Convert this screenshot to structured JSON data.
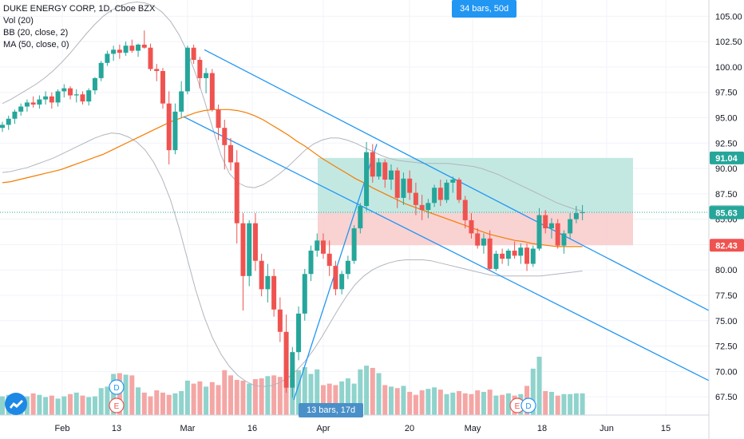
{
  "legend": {
    "title": "DUKE ENERGY CORP, 1D, Cboe BZX",
    "vol": "Vol (20)",
    "bb": "BB (20, close, 2)",
    "ma": "MA (50, close, 0)"
  },
  "colors": {
    "up": "#26a69a",
    "down": "#ef5350",
    "up_vol": "#8fd3cc",
    "down_vol": "#f4a6a5",
    "bb": "#b2b5be",
    "ma": "#f57c00",
    "channel": "#2196f3",
    "target_zone": "#b9e4dd",
    "stop_zone": "#f8caca",
    "price_line": "#26a69a",
    "label_green": "#26a69a",
    "label_red": "#ef5350",
    "label_blue": "#2196f3"
  },
  "measure_top": "34 bars, 50d",
  "measure_bottom": "13 bars, 17d",
  "logo_icon": "tradingview-logo-icon",
  "event_markers": [
    {
      "label": "D",
      "kind": "dividend",
      "x": "Feb 13"
    },
    {
      "label": "E",
      "kind": "earnings",
      "x": "Feb 13"
    },
    {
      "label": "E",
      "kind": "earnings",
      "x": "May 15"
    },
    {
      "label": "D",
      "kind": "dividend",
      "x": "May 18"
    }
  ],
  "chart_data": {
    "type": "candlestick",
    "title": "DUKE ENERGY CORP, 1D, Cboe BZX",
    "y_ticks": [
      "105.00",
      "102.50",
      "100.00",
      "97.50",
      "95.00",
      "92.50",
      "90.00",
      "87.50",
      "85.00",
      "82.50",
      "80.00",
      "77.50",
      "75.00",
      "72.50",
      "70.00",
      "67.50"
    ],
    "ylim": [
      65.7,
      106.6
    ],
    "x_ticks": [
      "Feb",
      "13",
      "Mar",
      "16",
      "Apr",
      "20",
      "May",
      "18",
      "Jun",
      "15"
    ],
    "price_labels": [
      {
        "value": "91.04",
        "color": "green",
        "meaning": "target"
      },
      {
        "value": "85.68",
        "color": "green_outline",
        "meaning": "last close"
      },
      {
        "value": "85.63",
        "color": "green",
        "meaning": "entry"
      },
      {
        "value": "82.43",
        "color": "red",
        "meaning": "stop"
      }
    ],
    "candles": [
      [
        94.0,
        94.6,
        93.6,
        94.3
      ],
      [
        94.3,
        95.2,
        93.8,
        94.9
      ],
      [
        94.9,
        95.8,
        94.4,
        95.6
      ],
      [
        95.6,
        96.4,
        95.2,
        96.1
      ],
      [
        96.1,
        96.8,
        95.6,
        96.5
      ],
      [
        96.5,
        97.1,
        96.0,
        96.3
      ],
      [
        96.3,
        97.2,
        95.9,
        96.8
      ],
      [
        96.8,
        97.6,
        96.3,
        97.1
      ],
      [
        97.1,
        97.5,
        95.9,
        96.5
      ],
      [
        96.5,
        97.8,
        96.1,
        97.6
      ],
      [
        97.6,
        98.3,
        97.0,
        97.9
      ],
      [
        97.9,
        98.1,
        96.8,
        97.2
      ],
      [
        97.2,
        97.8,
        96.5,
        97.3
      ],
      [
        97.3,
        97.6,
        96.3,
        96.6
      ],
      [
        96.6,
        97.9,
        96.2,
        97.7
      ],
      [
        97.7,
        99.0,
        97.3,
        98.9
      ],
      [
        98.9,
        100.6,
        98.6,
        100.4
      ],
      [
        100.4,
        101.6,
        100.1,
        101.3
      ],
      [
        101.3,
        102.1,
        100.6,
        101.7
      ],
      [
        101.7,
        102.2,
        100.8,
        101.4
      ],
      [
        101.4,
        102.5,
        101.1,
        102.1
      ],
      [
        102.1,
        102.7,
        101.4,
        101.6
      ],
      [
        101.6,
        102.3,
        101.0,
        102.2
      ],
      [
        102.2,
        103.6,
        101.8,
        101.9
      ],
      [
        101.9,
        102.3,
        99.6,
        99.8
      ],
      [
        99.8,
        100.3,
        98.6,
        99.6
      ],
      [
        99.6,
        99.9,
        95.9,
        96.4
      ],
      [
        96.4,
        97.6,
        90.4,
        91.8
      ],
      [
        91.8,
        96.4,
        91.4,
        95.6
      ],
      [
        95.6,
        98.6,
        95.0,
        97.6
      ],
      [
        97.6,
        102.1,
        97.3,
        101.9
      ],
      [
        101.9,
        102.2,
        100.3,
        100.7
      ],
      [
        100.7,
        101.0,
        97.9,
        98.9
      ],
      [
        98.9,
        99.9,
        97.4,
        99.4
      ],
      [
        99.4,
        99.8,
        95.6,
        95.8
      ],
      [
        95.8,
        96.3,
        92.8,
        94.0
      ],
      [
        94.0,
        94.8,
        89.9,
        92.3
      ],
      [
        92.3,
        93.0,
        89.8,
        90.6
      ],
      [
        90.6,
        91.8,
        82.6,
        84.6
      ],
      [
        84.6,
        85.6,
        76.0,
        79.4
      ],
      [
        79.4,
        84.9,
        78.4,
        84.6
      ],
      [
        84.6,
        85.6,
        79.9,
        80.9
      ],
      [
        80.9,
        81.6,
        77.4,
        78.1
      ],
      [
        78.1,
        80.6,
        76.8,
        79.4
      ],
      [
        79.4,
        80.1,
        75.4,
        76.1
      ],
      [
        76.1,
        77.3,
        72.9,
        73.9
      ],
      [
        73.9,
        75.6,
        67.9,
        68.4
      ],
      [
        68.4,
        72.4,
        67.4,
        71.9
      ],
      [
        71.9,
        76.4,
        71.1,
        75.7
      ],
      [
        75.7,
        80.1,
        75.0,
        79.6
      ],
      [
        79.6,
        82.4,
        78.9,
        81.9
      ],
      [
        81.9,
        83.6,
        81.3,
        82.9
      ],
      [
        82.9,
        83.6,
        81.1,
        81.6
      ],
      [
        81.6,
        82.9,
        79.4,
        80.4
      ],
      [
        80.4,
        80.9,
        77.5,
        78.1
      ],
      [
        78.1,
        79.9,
        77.6,
        79.6
      ],
      [
        79.6,
        81.4,
        79.1,
        80.9
      ],
      [
        80.9,
        84.4,
        80.6,
        84.1
      ],
      [
        84.1,
        86.6,
        83.6,
        86.3
      ],
      [
        86.3,
        92.6,
        85.8,
        91.6
      ],
      [
        91.6,
        92.4,
        88.6,
        89.2
      ],
      [
        89.2,
        91.0,
        88.9,
        90.6
      ],
      [
        90.6,
        90.9,
        88.1,
        88.9
      ],
      [
        88.9,
        90.4,
        87.9,
        89.8
      ],
      [
        89.8,
        90.1,
        86.1,
        87.1
      ],
      [
        87.1,
        89.6,
        86.4,
        89.0
      ],
      [
        89.0,
        89.8,
        86.9,
        87.6
      ],
      [
        87.6,
        88.6,
        85.4,
        86.4
      ],
      [
        86.4,
        87.4,
        84.9,
        85.9
      ],
      [
        85.9,
        87.0,
        85.1,
        86.6
      ],
      [
        86.6,
        88.4,
        86.2,
        88.1
      ],
      [
        88.1,
        88.9,
        86.3,
        86.9
      ],
      [
        86.9,
        88.9,
        86.6,
        88.6
      ],
      [
        88.6,
        89.2,
        87.6,
        88.9
      ],
      [
        88.9,
        89.1,
        86.6,
        86.9
      ],
      [
        86.9,
        87.3,
        84.1,
        84.9
      ],
      [
        84.9,
        85.6,
        83.1,
        83.6
      ],
      [
        83.6,
        84.1,
        82.1,
        82.4
      ],
      [
        82.4,
        83.6,
        81.6,
        83.1
      ],
      [
        83.1,
        83.9,
        79.9,
        80.1
      ],
      [
        80.1,
        81.9,
        79.9,
        81.6
      ],
      [
        81.6,
        82.1,
        80.6,
        81.1
      ],
      [
        81.1,
        82.1,
        80.4,
        81.9
      ],
      [
        81.9,
        82.8,
        81.1,
        81.4
      ],
      [
        81.4,
        82.6,
        80.6,
        82.2
      ],
      [
        82.2,
        82.6,
        79.9,
        80.6
      ],
      [
        80.6,
        82.4,
        80.3,
        82.1
      ],
      [
        82.1,
        86.1,
        81.9,
        85.4
      ],
      [
        85.4,
        85.9,
        83.6,
        84.1
      ],
      [
        84.1,
        85.1,
        83.1,
        84.6
      ],
      [
        84.6,
        85.0,
        82.1,
        82.4
      ],
      [
        82.4,
        83.9,
        81.6,
        83.6
      ],
      [
        83.6,
        85.6,
        83.1,
        85.0
      ],
      [
        85.0,
        86.3,
        84.6,
        85.6
      ],
      [
        85.6,
        86.4,
        84.9,
        85.7
      ]
    ],
    "volume": [
      2.5,
      2.7,
      2.8,
      2.3,
      2.5,
      2.9,
      2.7,
      2.4,
      2.6,
      2.2,
      2.5,
      2.8,
      3.0,
      2.6,
      2.4,
      2.5,
      3.6,
      3.8,
      5.5,
      5.6,
      5.4,
      5.3,
      3.7,
      3.0,
      2.5,
      3.3,
      3.0,
      2.7,
      2.9,
      3.2,
      4.6,
      4.2,
      4.5,
      3.8,
      4.4,
      4.0,
      6.0,
      5.3,
      4.7,
      4.6,
      4.2,
      4.8,
      4.9,
      5.2,
      5.3,
      5.1,
      6.3,
      5.7,
      6.0,
      6.4,
      5.5,
      6.1,
      4.0,
      4.2,
      4.0,
      4.5,
      4.9,
      4.2,
      6.1,
      6.6,
      6.3,
      5.6,
      4.0,
      3.8,
      3.6,
      3.9,
      3.1,
      2.7,
      3.3,
      3.5,
      3.7,
      3.4,
      2.8,
      3.0,
      3.2,
      2.9,
      2.8,
      3.3,
      3.1,
      3.4,
      2.6,
      2.7,
      2.9,
      2.6,
      2.8,
      3.9,
      6.2,
      7.8,
      3.2,
      3.1,
      2.6,
      2.8,
      2.8,
      2.9,
      2.9
    ],
    "bb_upper": [
      96.4,
      96.8,
      97.3,
      97.8,
      98.3,
      98.9,
      99.6,
      100.4,
      101.3,
      102.3,
      103.3,
      104.2,
      105.0,
      105.6,
      106.0,
      106.3,
      106.4,
      106.3,
      106.0,
      105.4,
      104.5,
      103.2,
      101.5,
      99.3,
      96.8,
      94.0,
      91.3,
      89.5,
      88.6,
      88.2,
      88.1,
      88.4,
      88.9,
      89.5,
      90.2,
      91.0,
      91.8,
      92.4,
      92.8,
      93.0,
      93.0,
      92.8,
      92.5,
      92.1,
      91.7,
      91.3,
      91.0,
      90.8,
      90.7,
      90.6,
      90.5,
      90.5,
      90.5,
      90.5,
      90.4,
      90.3,
      90.2,
      90.0,
      89.7,
      89.4,
      89.0,
      88.6,
      88.2,
      87.8,
      87.4,
      87.0,
      86.6,
      86.3,
      86.0,
      85.8
    ],
    "bb_lower": [
      89.6,
      89.7,
      89.9,
      90.1,
      90.4,
      90.7,
      91.0,
      91.4,
      91.8,
      92.2,
      92.6,
      93.0,
      93.3,
      93.5,
      93.4,
      93.1,
      92.6,
      91.8,
      90.6,
      89.0,
      86.9,
      84.2,
      81.1,
      78.0,
      75.4,
      73.3,
      71.7,
      70.5,
      69.6,
      69.0,
      68.6,
      68.5,
      68.6,
      68.9,
      69.4,
      70.1,
      71.0,
      72.1,
      73.4,
      74.8,
      76.2,
      77.5,
      78.6,
      79.4,
      80.0,
      80.4,
      80.7,
      80.9,
      81.0,
      81.0,
      81.0,
      80.9,
      80.7,
      80.5,
      80.3,
      80.1,
      79.9,
      79.7,
      79.5,
      79.4,
      79.4,
      79.4,
      79.4,
      79.4,
      79.4,
      79.5,
      79.6,
      79.7,
      79.8,
      79.9
    ],
    "ma": [
      88.6,
      88.7,
      88.9,
      89.1,
      89.3,
      89.5,
      89.7,
      89.9,
      90.2,
      90.5,
      90.8,
      91.1,
      91.4,
      91.8,
      92.2,
      92.6,
      93.0,
      93.4,
      93.8,
      94.2,
      94.6,
      94.9,
      95.2,
      95.5,
      95.7,
      95.8,
      95.8,
      95.8,
      95.7,
      95.5,
      95.2,
      94.8,
      94.3,
      93.8,
      93.3,
      92.7,
      92.2,
      91.6,
      91.0,
      90.5,
      90.0,
      89.5,
      89.0,
      88.6,
      88.1,
      87.7,
      87.3,
      86.9,
      86.5,
      86.2,
      85.9,
      85.6,
      85.3,
      85.0,
      84.7,
      84.4,
      84.1,
      83.8,
      83.5,
      83.3,
      83.1,
      82.9,
      82.8,
      82.6,
      82.5,
      82.4,
      82.3,
      82.3,
      82.3,
      82.3
    ]
  }
}
